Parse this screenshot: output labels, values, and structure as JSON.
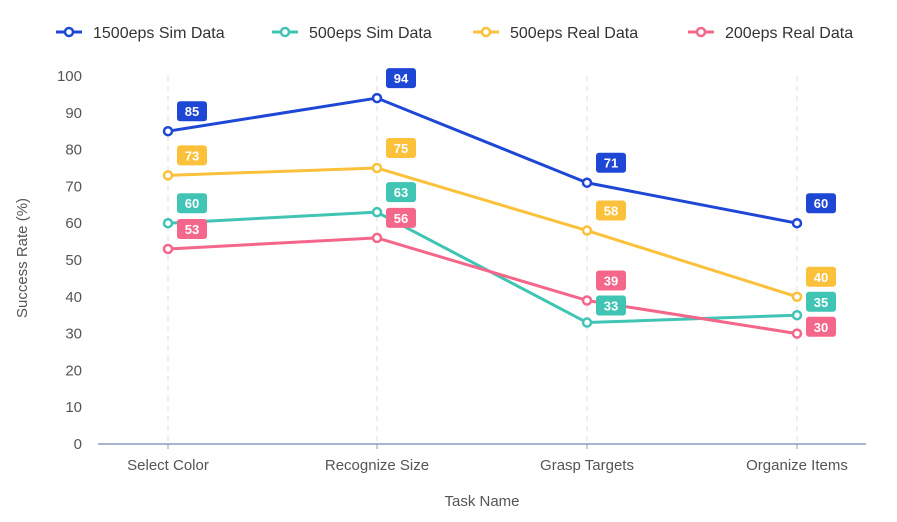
{
  "chart_data": {
    "type": "line",
    "title": "",
    "xlabel": "Task Name",
    "ylabel": "Success Rate (%)",
    "ylim": [
      0,
      100
    ],
    "yticks": [
      0,
      10,
      20,
      30,
      40,
      50,
      60,
      70,
      80,
      90,
      100
    ],
    "categories": [
      "Select Color",
      "Recognize Size",
      "Grasp Targets",
      "Organize Items"
    ],
    "legend_position": "top",
    "grid": "vertical dashed",
    "series": [
      {
        "name": "1500eps Sim Data",
        "color": "#1f47d6",
        "values": [
          85,
          94,
          71,
          60
        ]
      },
      {
        "name": "500eps Sim Data",
        "color": "#40c4b4",
        "values": [
          60,
          63,
          33,
          35
        ]
      },
      {
        "name": "500eps Real Data",
        "color": "#fbc13b",
        "values": [
          73,
          75,
          58,
          40
        ]
      },
      {
        "name": "200eps Real Data",
        "color": "#f4668a",
        "values": [
          53,
          56,
          39,
          30
        ]
      }
    ]
  }
}
